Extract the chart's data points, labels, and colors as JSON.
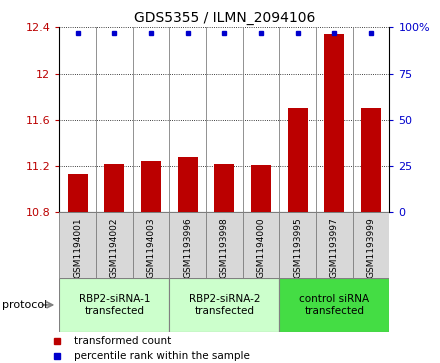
{
  "title": "GDS5355 / ILMN_2094106",
  "samples": [
    "GSM1194001",
    "GSM1194002",
    "GSM1194003",
    "GSM1193996",
    "GSM1193998",
    "GSM1194000",
    "GSM1193995",
    "GSM1193997",
    "GSM1193999"
  ],
  "bar_values": [
    11.13,
    11.22,
    11.24,
    11.28,
    11.22,
    11.21,
    11.7,
    12.34,
    11.7
  ],
  "percentile_values": [
    97,
    97,
    97,
    97,
    97,
    97,
    97,
    97,
    97
  ],
  "bar_color": "#bb0000",
  "dot_color": "#0000cc",
  "ylim_left": [
    10.8,
    12.4
  ],
  "ylim_right": [
    0,
    100
  ],
  "yticks_left": [
    10.8,
    11.2,
    11.6,
    12.0,
    12.4
  ],
  "yticks_right": [
    0,
    25,
    50,
    75,
    100
  ],
  "ytick_labels_left": [
    "10.8",
    "11.2",
    "11.6",
    "12",
    "12.4"
  ],
  "ytick_labels_right": [
    "0",
    "25",
    "50",
    "75",
    "100%"
  ],
  "groups": [
    {
      "label": "RBP2-siRNA-1\ntransfected",
      "start": 0,
      "end": 3,
      "color": "#ccffcc"
    },
    {
      "label": "RBP2-siRNA-2\ntransfected",
      "start": 3,
      "end": 6,
      "color": "#ccffcc"
    },
    {
      "label": "control siRNA\ntransfected",
      "start": 6,
      "end": 9,
      "color": "#44dd44"
    }
  ],
  "protocol_label": "protocol",
  "legend_items": [
    {
      "label": "transformed count",
      "color": "#bb0000"
    },
    {
      "label": "percentile rank within the sample",
      "color": "#0000cc"
    }
  ],
  "sample_bg": "#d8d8d8",
  "bar_bottom": 10.8
}
